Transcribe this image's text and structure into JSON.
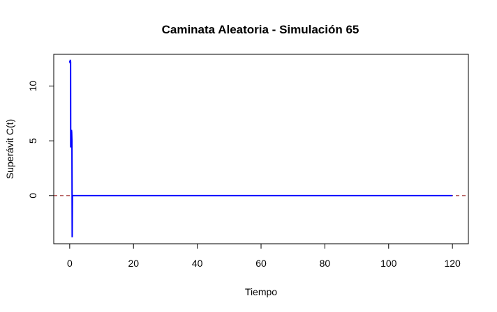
{
  "chart_data": {
    "type": "line",
    "title": "Caminata Aleatoria - Simulación 65",
    "xlabel": "Tiempo",
    "ylabel": "Superávit C(t)",
    "xlim": [
      -5,
      125
    ],
    "ylim": [
      -4.4,
      12.9
    ],
    "x_ticks": [
      0,
      20,
      40,
      60,
      80,
      100,
      120
    ],
    "y_ticks": [
      0,
      5,
      10
    ],
    "grid": false,
    "legend": "none",
    "series": [
      {
        "color": "#0000ff",
        "points": [
          [
            0.0,
            12.3
          ],
          [
            0.12,
            12.1
          ],
          [
            0.2,
            12.4
          ],
          [
            0.28,
            12.2
          ],
          [
            0.32,
            4.4
          ],
          [
            0.45,
            4.6
          ],
          [
            0.55,
            6.0
          ],
          [
            0.62,
            5.8
          ],
          [
            0.7,
            5.0
          ],
          [
            0.78,
            -3.8
          ],
          [
            0.85,
            0.0
          ],
          [
            120.0,
            0.0
          ]
        ]
      }
    ],
    "reference_line": {
      "y": 0,
      "color": "#8b0000",
      "style": "dashed"
    }
  }
}
